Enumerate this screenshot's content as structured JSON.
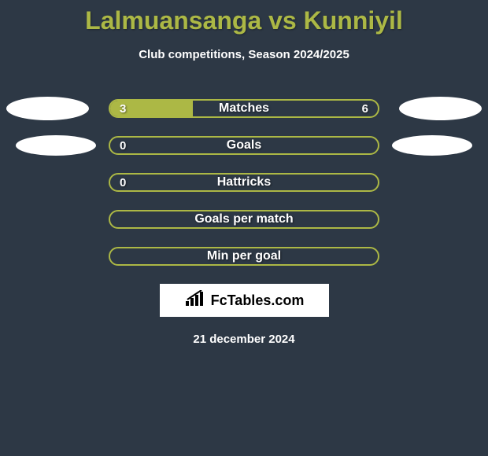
{
  "title": "Lalmuansanga vs Kunniyil",
  "subtitle": "Club competitions, Season 2024/2025",
  "date": "21 december 2024",
  "logo_text": "FcTables.com",
  "colors": {
    "background": "#2d3845",
    "accent": "#acb845",
    "text_light": "#ffffff",
    "avatar_bg": "#ffffff"
  },
  "avatar_rows": [
    0,
    1
  ],
  "stats": [
    {
      "label": "Matches",
      "left_value": "3",
      "right_value": "6",
      "left_fill_pct": 31,
      "right_fill_pct": 0
    },
    {
      "label": "Goals",
      "left_value": "0",
      "right_value": "",
      "left_fill_pct": 0,
      "right_fill_pct": 0
    },
    {
      "label": "Hattricks",
      "left_value": "0",
      "right_value": "",
      "left_fill_pct": 0,
      "right_fill_pct": 0
    },
    {
      "label": "Goals per match",
      "left_value": "",
      "right_value": "",
      "left_fill_pct": 0,
      "right_fill_pct": 0
    },
    {
      "label": "Min per goal",
      "left_value": "",
      "right_value": "",
      "left_fill_pct": 0,
      "right_fill_pct": 0
    }
  ]
}
